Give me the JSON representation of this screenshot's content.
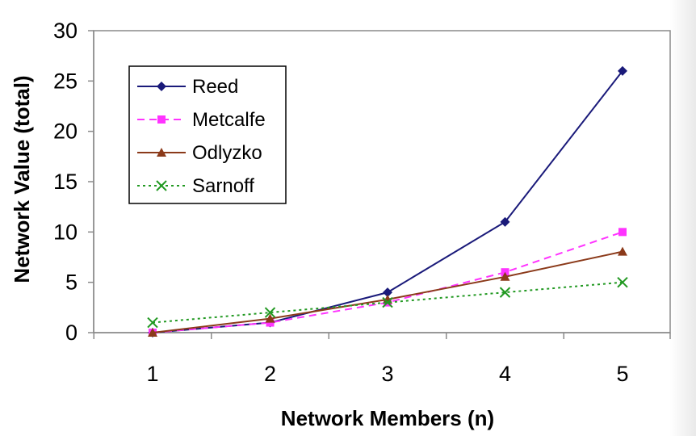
{
  "chart_data": {
    "type": "line",
    "title": "",
    "xlabel": "Network Members (n)",
    "ylabel": "Network Value (total)",
    "x": [
      1,
      2,
      3,
      4,
      5
    ],
    "xlim": [
      1,
      5
    ],
    "ylim": [
      0,
      30
    ],
    "ytick_step": 5,
    "y_gridlines": false,
    "legend_position": "upper-left",
    "series": [
      {
        "name": "Reed",
        "values": [
          0,
          1,
          4,
          11,
          26
        ],
        "color": "#1a1a7a",
        "line": "solid",
        "marker": "diamond"
      },
      {
        "name": "Metcalfe",
        "values": [
          0,
          1,
          3,
          6,
          10
        ],
        "color": "#ff33ff",
        "line": "dashed",
        "marker": "square"
      },
      {
        "name": "Odlyzko",
        "values": [
          0,
          1.39,
          3.3,
          5.55,
          8.05
        ],
        "color": "#8b3a1a",
        "line": "solid",
        "marker": "triangle"
      },
      {
        "name": "Sarnoff",
        "values": [
          1,
          2,
          3,
          4,
          5
        ],
        "color": "#229922",
        "line": "dotted",
        "marker": "x"
      }
    ]
  }
}
